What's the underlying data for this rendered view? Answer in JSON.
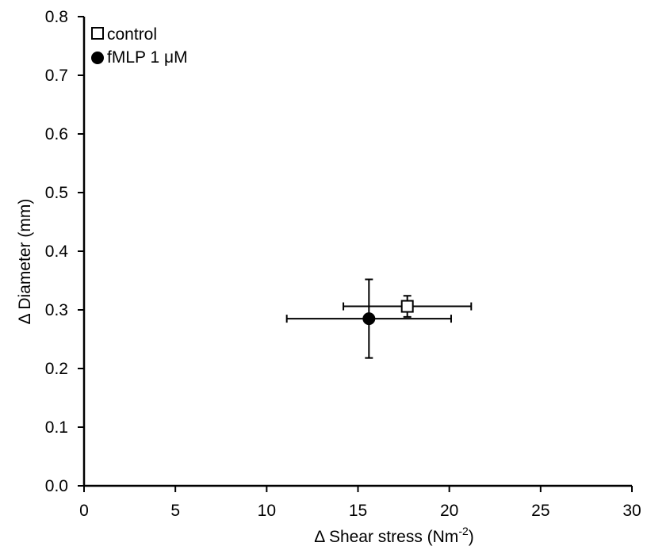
{
  "chart_data": {
    "type": "scatter",
    "xlabel": "Δ Shear stress (Nm",
    "xlabel_superscript": "-2",
    "xlabel_suffix": ")",
    "ylabel": "Δ Diameter (mm)",
    "xlim": [
      0,
      30
    ],
    "ylim": [
      0,
      0.8
    ],
    "x_ticks": [
      0,
      5,
      10,
      15,
      20,
      25,
      30
    ],
    "y_ticks": [
      0.0,
      0.1,
      0.2,
      0.3,
      0.4,
      0.5,
      0.6,
      0.7,
      0.8
    ],
    "x_tick_labels": [
      "0",
      "5",
      "10",
      "15",
      "20",
      "25",
      "30"
    ],
    "y_tick_labels": [
      "0.0",
      "0.1",
      "0.2",
      "0.3",
      "0.4",
      "0.5",
      "0.6",
      "0.7",
      "0.8"
    ],
    "grid": false,
    "legend_position": "top-left",
    "series": [
      {
        "name": "control",
        "marker": "open-square",
        "color": "#000000",
        "points": [
          {
            "x": 17.7,
            "y": 0.306,
            "x_err": 3.5,
            "y_err": 0.018
          }
        ]
      },
      {
        "name": "fMLP 1 μM",
        "marker": "filled-circle",
        "color": "#000000",
        "points": [
          {
            "x": 15.6,
            "y": 0.285,
            "x_err": 4.5,
            "y_err": 0.067
          }
        ]
      }
    ]
  }
}
